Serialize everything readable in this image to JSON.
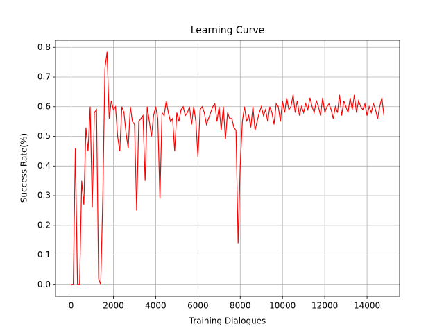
{
  "chart_data": {
    "type": "line",
    "title": "Learning Curve",
    "x_label": "Training Dialogues",
    "y_label": "Success Rate(%)",
    "x": [
      0,
      100,
      200,
      300,
      400,
      500,
      600,
      700,
      800,
      900,
      1000,
      1100,
      1200,
      1300,
      1400,
      1500,
      1600,
      1700,
      1800,
      1900,
      2000,
      2100,
      2200,
      2300,
      2400,
      2500,
      2600,
      2700,
      2800,
      2900,
      3000,
      3100,
      3200,
      3300,
      3400,
      3500,
      3600,
      3700,
      3800,
      3900,
      4000,
      4100,
      4200,
      4300,
      4400,
      4500,
      4600,
      4700,
      4800,
      4900,
      5000,
      5100,
      5200,
      5300,
      5400,
      5500,
      5600,
      5700,
      5800,
      5900,
      6000,
      6100,
      6200,
      6300,
      6400,
      6500,
      6600,
      6700,
      6800,
      6900,
      7000,
      7100,
      7200,
      7300,
      7400,
      7500,
      7600,
      7700,
      7800,
      7900,
      8000,
      8100,
      8200,
      8300,
      8400,
      8500,
      8600,
      8700,
      8800,
      8900,
      9000,
      9100,
      9200,
      9300,
      9400,
      9500,
      9600,
      9700,
      9800,
      9900,
      10000,
      10100,
      10200,
      10300,
      10400,
      10500,
      10600,
      10700,
      10800,
      10900,
      11000,
      11100,
      11200,
      11300,
      11400,
      11500,
      11600,
      11700,
      11800,
      11900,
      12000,
      12100,
      12200,
      12300,
      12400,
      12500,
      12600,
      12700,
      12800,
      12900,
      13000,
      13100,
      13200,
      13300,
      13400,
      13500,
      13600,
      13700,
      13800,
      13900,
      14000,
      14100,
      14200,
      14300,
      14400,
      14500,
      14600,
      14700,
      14800
    ],
    "series": [
      {
        "name": "Success Rate",
        "color": "#ff0000",
        "values": [
          0,
          0,
          0.46,
          0,
          0,
          0.35,
          0.27,
          0.53,
          0.45,
          0.6,
          0.26,
          0.58,
          0.59,
          0.02,
          0,
          0.3,
          0.73,
          0.785,
          0.56,
          0.62,
          0.59,
          0.6,
          0.5,
          0.45,
          0.6,
          0.58,
          0.51,
          0.46,
          0.6,
          0.55,
          0.54,
          0.25,
          0.55,
          0.56,
          0.57,
          0.35,
          0.6,
          0.55,
          0.5,
          0.57,
          0.6,
          0.56,
          0.29,
          0.58,
          0.57,
          0.62,
          0.58,
          0.55,
          0.56,
          0.45,
          0.58,
          0.55,
          0.59,
          0.6,
          0.57,
          0.58,
          0.6,
          0.54,
          0.6,
          0.55,
          0.43,
          0.59,
          0.6,
          0.58,
          0.54,
          0.56,
          0.58,
          0.6,
          0.61,
          0.55,
          0.6,
          0.52,
          0.6,
          0.49,
          0.58,
          0.56,
          0.56,
          0.53,
          0.52,
          0.14,
          0.4,
          0.55,
          0.6,
          0.55,
          0.57,
          0.53,
          0.6,
          0.52,
          0.55,
          0.58,
          0.6,
          0.57,
          0.59,
          0.55,
          0.6,
          0.58,
          0.54,
          0.61,
          0.6,
          0.55,
          0.62,
          0.58,
          0.63,
          0.59,
          0.6,
          0.64,
          0.58,
          0.62,
          0.57,
          0.6,
          0.58,
          0.61,
          0.59,
          0.63,
          0.6,
          0.58,
          0.62,
          0.6,
          0.57,
          0.63,
          0.58,
          0.6,
          0.61,
          0.59,
          0.56,
          0.6,
          0.58,
          0.64,
          0.57,
          0.62,
          0.6,
          0.58,
          0.63,
          0.59,
          0.64,
          0.58,
          0.62,
          0.6,
          0.59,
          0.61,
          0.57,
          0.6,
          0.58,
          0.61,
          0.59,
          0.56,
          0.6,
          0.63,
          0.57
        ]
      }
    ],
    "xlim": [
      -740,
      15540
    ],
    "ylim": [
      -0.039,
      0.824
    ],
    "xticks": [
      0,
      2000,
      4000,
      6000,
      8000,
      10000,
      12000,
      14000
    ],
    "yticks": [
      {
        "value": 0,
        "label": "0.0"
      },
      0.1,
      0.2,
      0.3,
      0.4,
      0.5,
      0.6,
      0.7,
      0.8
    ],
    "grid": true
  }
}
